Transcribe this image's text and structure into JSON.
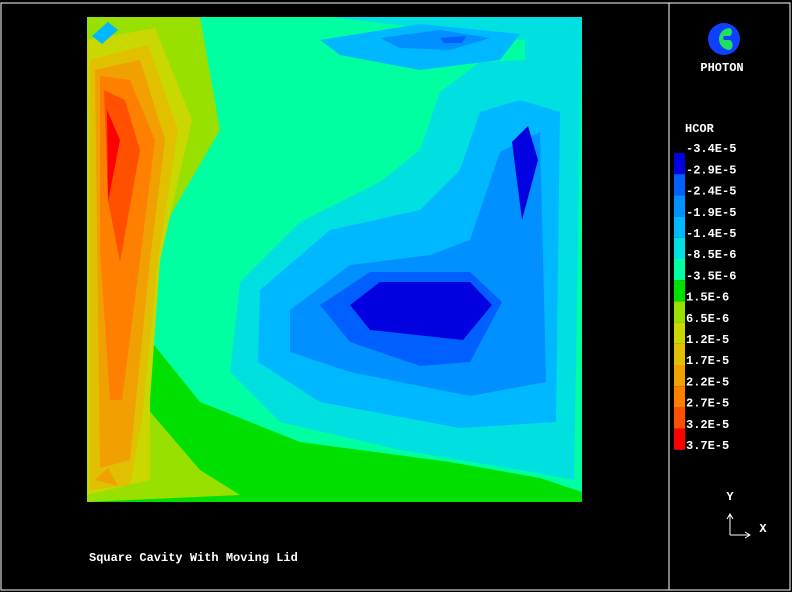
{
  "window": {
    "caption": "Square Cavity With Moving Lid"
  },
  "logo": {
    "text": "PHOTON"
  },
  "legend": {
    "title": "HCOR",
    "labels": [
      "-3.4E-5",
      "-2.9E-5",
      "-2.4E-5",
      "-1.9E-5",
      "-1.4E-5",
      "-8.5E-6",
      "-3.5E-6",
      "1.5E-6",
      "6.5E-6",
      "1.2E-5",
      "1.7E-5",
      "2.2E-5",
      "2.7E-5",
      "3.2E-5",
      "3.7E-5"
    ],
    "colors": [
      "#0000e0",
      "#0060ff",
      "#0090ff",
      "#00b8ff",
      "#00e0e0",
      "#00ffa0",
      "#00e000",
      "#98e000",
      "#c8d800",
      "#e0c000",
      "#f0a000",
      "#ff8000",
      "#ff5000",
      "#ff0000"
    ]
  },
  "axes": {
    "y": "Y",
    "x": "X"
  }
}
